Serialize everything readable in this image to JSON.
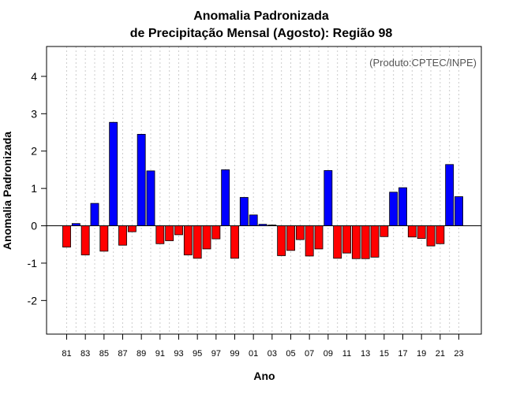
{
  "chart_data": {
    "type": "bar",
    "title_line1": "Anomalia Padronizada",
    "title_line2": "de Precipitação Mensal (Agosto): Região 98",
    "xlabel": "Ano",
    "ylabel": "Anomalia Padronizada",
    "credit": "(Produto:CPTEC/INPE)",
    "ylim": [
      -2.9,
      4.8
    ],
    "yticks": [
      -2,
      -1,
      0,
      1,
      2,
      3,
      4
    ],
    "xtick_labels": [
      "81",
      "83",
      "85",
      "87",
      "89",
      "91",
      "93",
      "95",
      "97",
      "99",
      "01",
      "03",
      "05",
      "07",
      "09",
      "11",
      "13",
      "15",
      "17",
      "19",
      "21",
      "23"
    ],
    "positive_color": "#0000ff",
    "negative_color": "#ff0000",
    "years": [
      1981,
      1982,
      1983,
      1984,
      1985,
      1986,
      1987,
      1988,
      1989,
      1990,
      1991,
      1992,
      1993,
      1994,
      1995,
      1996,
      1997,
      1998,
      1999,
      2000,
      2001,
      2002,
      2003,
      2004,
      2005,
      2006,
      2007,
      2008,
      2009,
      2010,
      2011,
      2012,
      2013,
      2014,
      2015,
      2016,
      2017,
      2018,
      2019,
      2020,
      2021,
      2022,
      2023
    ],
    "values": [
      -0.57,
      0.06,
      -0.78,
      0.6,
      -0.68,
      2.77,
      -0.52,
      -0.16,
      2.45,
      1.47,
      -0.48,
      -0.4,
      -0.24,
      -0.78,
      -0.87,
      -0.62,
      -0.35,
      1.5,
      -0.87,
      0.76,
      0.29,
      0.04,
      0.02,
      -0.8,
      -0.66,
      -0.37,
      -0.81,
      -0.62,
      1.48,
      -0.87,
      -0.73,
      -0.88,
      -0.88,
      -0.84,
      -0.29,
      0.9,
      1.02,
      -0.3,
      -0.34,
      -0.54,
      -0.48,
      1.64,
      0.78
    ]
  }
}
